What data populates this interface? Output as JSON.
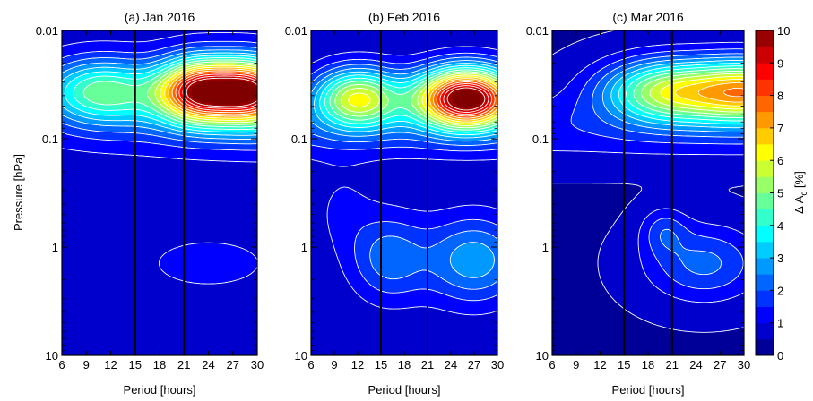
{
  "chart_data": [
    {
      "type": "heatmap",
      "title": "(a) Jan 2016",
      "xlabel": "Period [hours]",
      "ylabel": "Pressure [hPa]",
      "xlim": [
        6,
        30
      ],
      "ylim": [
        10,
        0.01
      ],
      "yscale": "log",
      "x_ticks": [
        "6",
        "9",
        "12",
        "15",
        "18",
        "21",
        "24",
        "27",
        "30"
      ],
      "y_ticks": [
        "0.01",
        "0.1",
        "1",
        "10"
      ],
      "vertical_lines_x": [
        15,
        21
      ],
      "peaks": [
        {
          "x": 23,
          "p": 0.032,
          "value": 9.6
        },
        {
          "x": 29,
          "p": 0.032,
          "value": 8.6
        },
        {
          "x": 11,
          "p": 0.034,
          "value": 4.5
        }
      ]
    },
    {
      "type": "heatmap",
      "title": "(b) Feb 2016",
      "xlabel": "Period [hours]",
      "ylabel": "",
      "xlim": [
        6,
        30
      ],
      "ylim": [
        10,
        0.01
      ],
      "yscale": "log",
      "x_ticks": [
        "6",
        "9",
        "12",
        "15",
        "18",
        "21",
        "24",
        "27",
        "30"
      ],
      "y_ticks": [
        "0.01",
        "0.1",
        "1",
        "10"
      ],
      "vertical_lines_x": [
        15,
        21
      ],
      "peaks": [
        {
          "x": 26,
          "p": 0.041,
          "value": 10.0
        },
        {
          "x": 12,
          "p": 0.041,
          "value": 5.3
        },
        {
          "x": 28,
          "p": 1.4,
          "value": 3.2
        }
      ]
    },
    {
      "type": "heatmap",
      "title": "(c) Mar 2016",
      "xlabel": "Period [hours]",
      "ylabel": "",
      "xlim": [
        6,
        30
      ],
      "ylim": [
        10,
        0.01
      ],
      "yscale": "log",
      "x_ticks": [
        "6",
        "9",
        "12",
        "15",
        "18",
        "21",
        "24",
        "27",
        "30"
      ],
      "y_ticks": [
        "0.01",
        "0.1",
        "1",
        "10"
      ],
      "vertical_lines_x": [
        15,
        21
      ],
      "peaks": [
        {
          "x": 30,
          "p": 0.036,
          "value": 6.5
        },
        {
          "x": 20,
          "p": 0.036,
          "value": 4.8
        },
        {
          "x": 25,
          "p": 1.5,
          "value": 2.1
        },
        {
          "x": 20,
          "p": 0.72,
          "value": 1.8
        }
      ]
    }
  ],
  "colorbar": {
    "label_main": "Δ A",
    "label_sub": "c",
    "label_unit": " [%]",
    "range": [
      0,
      10
    ],
    "ticks": [
      "0",
      "1",
      "2",
      "3",
      "4",
      "5",
      "6",
      "7",
      "8",
      "9",
      "10"
    ]
  }
}
